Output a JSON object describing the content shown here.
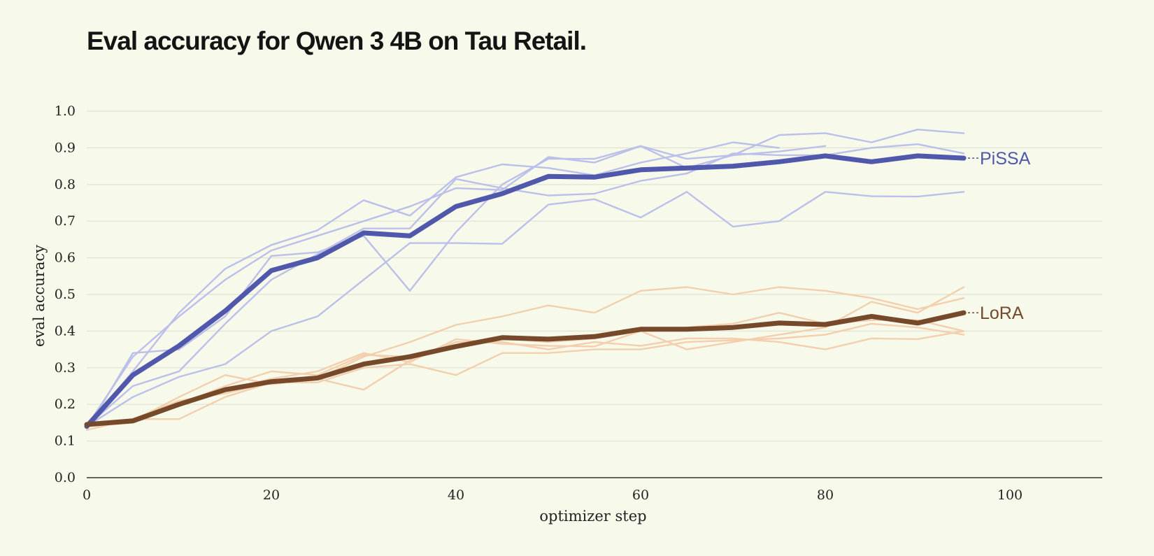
{
  "chart_data": {
    "type": "line",
    "title": "Eval accuracy for Qwen 3 4B on Tau Retail.",
    "xlabel": "optimizer step",
    "ylabel": "eval accuracy",
    "xlim": [
      0,
      110
    ],
    "ylim": [
      0,
      1.0
    ],
    "xticks": [
      0,
      20,
      40,
      60,
      80,
      100
    ],
    "yticks": [
      0.0,
      0.1,
      0.2,
      0.3,
      0.4,
      0.5,
      0.6,
      0.7,
      0.8,
      0.9,
      1.0
    ],
    "grid": "horizontal",
    "x": [
      0,
      5,
      10,
      15,
      20,
      25,
      30,
      35,
      40,
      45,
      50,
      55,
      60,
      65,
      70,
      75,
      80,
      85,
      90,
      95
    ],
    "series": [
      {
        "name": "PiSSA",
        "color": "#5058ab",
        "run_color": "#bbc0ea",
        "mean": [
          0.14,
          0.28,
          0.36,
          0.455,
          0.565,
          0.6,
          0.668,
          0.66,
          0.74,
          0.775,
          0.822,
          0.82,
          0.84,
          0.845,
          0.85,
          0.862,
          0.878,
          0.862,
          0.878,
          0.872
        ],
        "runs": [
          [
            0.14,
            0.33,
            0.44,
            0.54,
            0.62,
            0.66,
            0.7,
            0.74,
            0.79,
            0.785,
            0.875,
            0.86,
            0.905,
            0.87,
            0.88,
            0.89,
            0.905
          ],
          [
            0.13,
            0.34,
            0.35,
            0.44,
            0.605,
            0.615,
            0.66,
            0.51,
            0.67,
            0.8,
            0.87,
            0.87,
            0.905,
            0.845,
            0.88,
            0.935,
            0.94,
            0.915,
            0.95,
            0.94
          ],
          [
            0.14,
            0.25,
            0.29,
            0.42,
            0.54,
            0.61,
            0.68,
            0.68,
            0.815,
            0.79,
            0.77,
            0.775,
            0.81,
            0.83,
            0.885,
            0.88,
            0.88,
            0.9,
            0.91,
            0.885
          ],
          [
            0.14,
            0.22,
            0.275,
            0.31,
            0.4,
            0.44,
            0.54,
            0.64,
            0.64,
            0.638,
            0.745,
            0.76,
            0.71,
            0.78,
            0.685,
            0.7,
            0.78,
            0.768,
            0.767,
            0.78
          ],
          [
            0.14,
            0.29,
            0.45,
            0.57,
            0.635,
            0.675,
            0.757,
            0.715,
            0.82,
            0.855,
            0.845,
            0.825,
            0.86,
            0.885,
            0.915,
            0.9
          ]
        ]
      },
      {
        "name": "LoRA",
        "color": "#76492b",
        "run_color": "#f3cfae",
        "mean": [
          0.145,
          0.155,
          0.2,
          0.24,
          0.262,
          0.272,
          0.31,
          0.33,
          0.358,
          0.382,
          0.378,
          0.385,
          0.405,
          0.405,
          0.41,
          0.422,
          0.418,
          0.44,
          0.422,
          0.45
        ],
        "runs": [
          [
            0.13,
            0.16,
            0.16,
            0.22,
            0.26,
            0.26,
            0.3,
            0.31,
            0.28,
            0.34,
            0.34,
            0.35,
            0.35,
            0.37,
            0.375,
            0.38,
            0.39,
            0.42,
            0.41,
            0.39
          ],
          [
            0.14,
            0.16,
            0.21,
            0.23,
            0.26,
            0.27,
            0.24,
            0.32,
            0.37,
            0.37,
            0.35,
            0.37,
            0.36,
            0.38,
            0.38,
            0.37,
            0.35,
            0.38,
            0.378,
            0.4
          ],
          [
            0.145,
            0.155,
            0.22,
            0.28,
            0.255,
            0.27,
            0.33,
            0.37,
            0.417,
            0.44,
            0.47,
            0.45,
            0.51,
            0.52,
            0.5,
            0.52,
            0.51,
            0.49,
            0.46,
            0.49
          ],
          [
            0.14,
            0.16,
            0.2,
            0.24,
            0.27,
            0.29,
            0.34,
            0.315,
            0.378,
            0.365,
            0.36,
            0.358,
            0.4,
            0.35,
            0.37,
            0.39,
            0.41,
            0.48,
            0.45,
            0.52
          ],
          [
            0.14,
            0.15,
            0.2,
            0.25,
            0.29,
            0.28,
            0.335,
            0.33,
            0.36,
            0.38,
            0.37,
            0.38,
            0.4,
            0.41,
            0.42,
            0.45,
            0.42,
            0.43,
            0.43,
            0.4
          ]
        ]
      }
    ]
  }
}
